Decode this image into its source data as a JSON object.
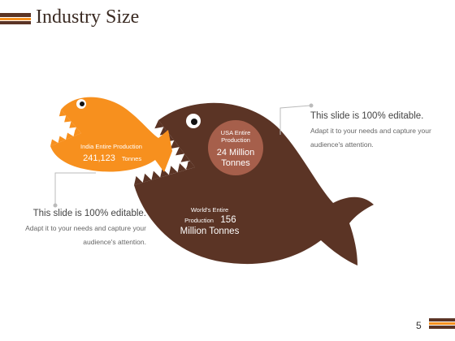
{
  "header": {
    "title": "Industry Size"
  },
  "india": {
    "label": "India Entire Production",
    "value": "241,123",
    "unit": "Tonnes"
  },
  "usa": {
    "label": "USA Entire Production",
    "value": "24 Million Tonnes"
  },
  "world": {
    "label_lines": [
      "World's Entire",
      "Production"
    ],
    "value": "156",
    "unit": "Million Tonnes"
  },
  "callouts": [
    {
      "title": "This slide is 100% editable.",
      "text": "Adapt it to your needs and capture your audience's attention."
    },
    {
      "title": "This slide is 100% editable.",
      "text": "Adapt it to your needs and capture your audience's attention."
    }
  ],
  "page_number": "5"
}
